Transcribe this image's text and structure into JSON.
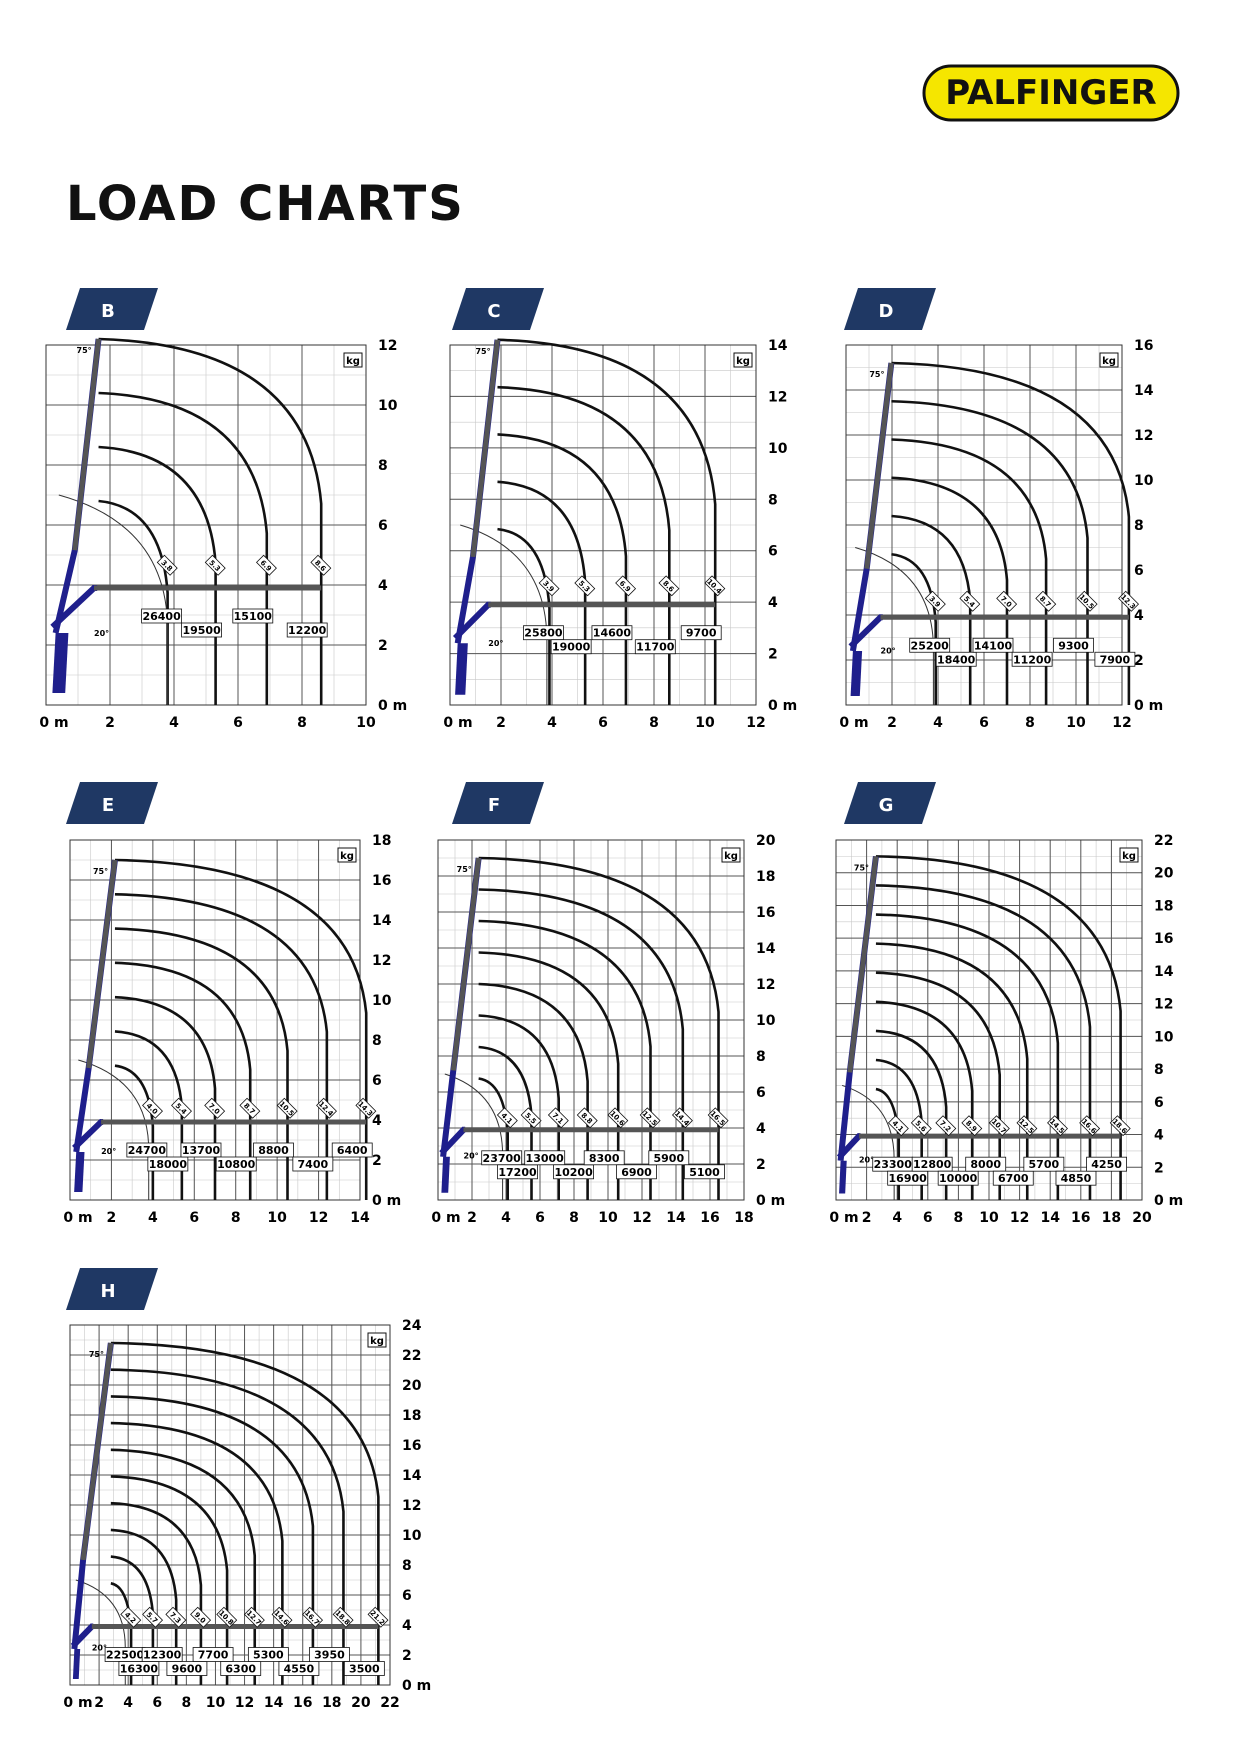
{
  "brand": {
    "name": "PALFINGER",
    "colors": {
      "logo_fill": "#f5e600",
      "logo_text": "#111111",
      "tab": "#1f3864",
      "boom": "#1f1f8c",
      "boom_ext": "#555555"
    }
  },
  "page": {
    "title": "LOAD CHARTS"
  },
  "common": {
    "unit_kg": "kg",
    "angle_top": "75°",
    "angle_low": "20°"
  },
  "chart_data": [
    {
      "type": "line",
      "label": "B",
      "x_ticks": [
        "0 m",
        "2",
        "4",
        "6",
        "8",
        "10"
      ],
      "y_ticks": [
        "0 m",
        "2",
        "4",
        "6",
        "8",
        "10",
        "12"
      ],
      "xlim": [
        0,
        10
      ],
      "ylim": [
        0,
        12
      ],
      "max_height": 12.2,
      "outreach_labels": [
        "3.8",
        "5.3",
        "6.9",
        "8.6"
      ],
      "reach": [
        3.8,
        5.3,
        6.9,
        8.6
      ],
      "loads": [
        "26400",
        "19500",
        "15100",
        "12200"
      ]
    },
    {
      "type": "line",
      "label": "C",
      "x_ticks": [
        "0 m",
        "2",
        "4",
        "6",
        "8",
        "10",
        "12"
      ],
      "y_ticks": [
        "0 m",
        "2",
        "4",
        "6",
        "8",
        "10",
        "12",
        "14"
      ],
      "xlim": [
        0,
        12
      ],
      "ylim": [
        0,
        14
      ],
      "max_height": 14.2,
      "outreach_labels": [
        "3.9",
        "5.3",
        "6.9",
        "8.6",
        "10.4"
      ],
      "reach": [
        3.9,
        5.3,
        6.9,
        8.6,
        10.4
      ],
      "loads": [
        "25800",
        "19000",
        "14600",
        "11700",
        "9700"
      ]
    },
    {
      "type": "line",
      "label": "D",
      "x_ticks": [
        "0 m",
        "2",
        "4",
        "6",
        "8",
        "10",
        "12"
      ],
      "y_ticks": [
        "0 m",
        "2",
        "4",
        "6",
        "8",
        "10",
        "12",
        "14",
        "16"
      ],
      "xlim": [
        0,
        12
      ],
      "ylim": [
        0,
        16
      ],
      "max_height": 15.2,
      "outreach_labels": [
        "3.9",
        "5.4",
        "7.0",
        "8.7",
        "10.5",
        "12.3"
      ],
      "reach": [
        3.9,
        5.4,
        7.0,
        8.7,
        10.5,
        12.3
      ],
      "loads": [
        "25200",
        "18400",
        "14100",
        "11200",
        "9300",
        "7900"
      ]
    },
    {
      "type": "line",
      "label": "E",
      "x_ticks": [
        "0 m",
        "2",
        "4",
        "6",
        "8",
        "10",
        "12",
        "14"
      ],
      "y_ticks": [
        "0 m",
        "2",
        "4",
        "6",
        "8",
        "10",
        "12",
        "14",
        "16",
        "18"
      ],
      "xlim": [
        0,
        14
      ],
      "ylim": [
        0,
        18
      ],
      "max_height": 17.0,
      "outreach_labels": [
        "4.0",
        "5.4",
        "7.0",
        "8.7",
        "10.5",
        "12.4",
        "14.3"
      ],
      "reach": [
        4.0,
        5.4,
        7.0,
        8.7,
        10.5,
        12.4,
        14.3
      ],
      "loads": [
        "24700",
        "18000",
        "13700",
        "10800",
        "8800",
        "7400",
        "6400"
      ]
    },
    {
      "type": "line",
      "label": "F",
      "x_ticks": [
        "0 m",
        "2",
        "4",
        "6",
        "8",
        "10",
        "12",
        "14",
        "16",
        "18"
      ],
      "y_ticks": [
        "0 m",
        "2",
        "4",
        "6",
        "8",
        "10",
        "12",
        "14",
        "16",
        "18",
        "20"
      ],
      "xlim": [
        0,
        18
      ],
      "ylim": [
        0,
        20
      ],
      "max_height": 19.0,
      "outreach_labels": [
        "4.1",
        "5.5",
        "7.1",
        "8.8",
        "10.6",
        "12.5",
        "14.4",
        "16.5"
      ],
      "reach": [
        4.1,
        5.5,
        7.1,
        8.8,
        10.6,
        12.5,
        14.4,
        16.5
      ],
      "loads": [
        "23700",
        "17200",
        "13000",
        "10200",
        "8300",
        "6900",
        "5900",
        "5100"
      ]
    },
    {
      "type": "line",
      "label": "G",
      "x_ticks": [
        "0 m",
        "2",
        "4",
        "6",
        "8",
        "10",
        "12",
        "14",
        "16",
        "18",
        "20"
      ],
      "y_ticks": [
        "0 m",
        "2",
        "4",
        "6",
        "8",
        "10",
        "12",
        "14",
        "16",
        "18",
        "20",
        "22"
      ],
      "xlim": [
        0,
        20
      ],
      "ylim": [
        0,
        22
      ],
      "max_height": 21.0,
      "outreach_labels": [
        "4.1",
        "5.6",
        "7.2",
        "8.9",
        "10.7",
        "12.5",
        "14.5",
        "16.6",
        "18.6"
      ],
      "reach": [
        4.1,
        5.6,
        7.2,
        8.9,
        10.7,
        12.5,
        14.5,
        16.6,
        18.6
      ],
      "loads": [
        "23300",
        "16900",
        "12800",
        "10000",
        "8000",
        "6700",
        "5700",
        "4850",
        "4250"
      ]
    },
    {
      "type": "line",
      "label": "H",
      "x_ticks": [
        "0 m",
        "2",
        "4",
        "6",
        "8",
        "10",
        "12",
        "14",
        "16",
        "18",
        "20",
        "22"
      ],
      "y_ticks": [
        "0 m",
        "2",
        "4",
        "6",
        "8",
        "10",
        "12",
        "14",
        "16",
        "18",
        "20",
        "22",
        "24"
      ],
      "xlim": [
        0,
        22
      ],
      "ylim": [
        0,
        24
      ],
      "max_height": 22.8,
      "outreach_labels": [
        "4.2",
        "5.7",
        "7.3",
        "9.0",
        "10.8",
        "12.7",
        "14.6",
        "16.7",
        "18.8",
        "21.2"
      ],
      "reach": [
        4.2,
        5.7,
        7.3,
        9.0,
        10.8,
        12.7,
        14.6,
        16.7,
        18.8,
        21.2
      ],
      "loads": [
        "22500",
        "16300",
        "12300",
        "9600",
        "7700",
        "6300",
        "5300",
        "4550",
        "3950",
        "3500"
      ]
    }
  ]
}
